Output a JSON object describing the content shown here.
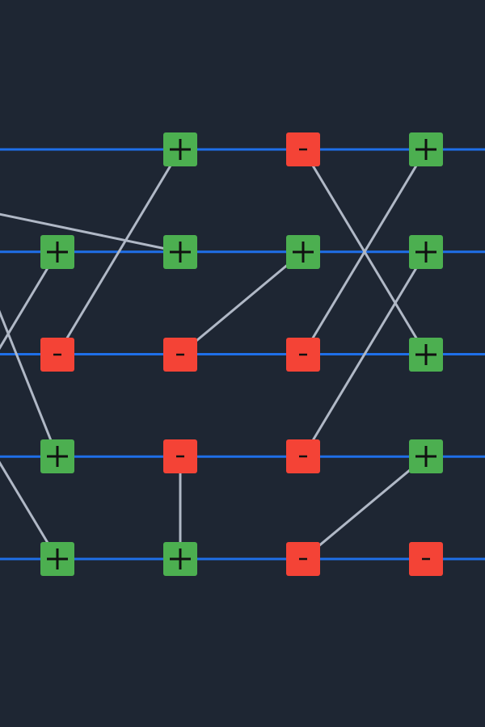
{
  "theme": {
    "background": "#1e2633",
    "wire_color": "#1f6fe8",
    "connector_color": "#b0b8c6",
    "plus_color": "#4caf50",
    "minus_color": "#f44336",
    "sign_color": "#111111"
  },
  "board": {
    "rows": 5,
    "columns": 4,
    "nodes": [
      {
        "row": 0,
        "col": 1,
        "sign": "plus",
        "icon": "plus-icon"
      },
      {
        "row": 0,
        "col": 2,
        "sign": "minus",
        "icon": "minus-icon"
      },
      {
        "row": 0,
        "col": 3,
        "sign": "plus",
        "icon": "plus-icon"
      },
      {
        "row": 1,
        "col": 0,
        "sign": "plus",
        "icon": "plus-icon"
      },
      {
        "row": 1,
        "col": 1,
        "sign": "plus",
        "icon": "plus-icon"
      },
      {
        "row": 1,
        "col": 2,
        "sign": "plus",
        "icon": "plus-icon"
      },
      {
        "row": 1,
        "col": 3,
        "sign": "plus",
        "icon": "plus-icon"
      },
      {
        "row": 2,
        "col": 0,
        "sign": "minus",
        "icon": "minus-icon"
      },
      {
        "row": 2,
        "col": 1,
        "sign": "minus",
        "icon": "minus-icon"
      },
      {
        "row": 2,
        "col": 2,
        "sign": "minus",
        "icon": "minus-icon"
      },
      {
        "row": 2,
        "col": 3,
        "sign": "plus",
        "icon": "plus-icon"
      },
      {
        "row": 3,
        "col": 0,
        "sign": "plus",
        "icon": "plus-icon"
      },
      {
        "row": 3,
        "col": 1,
        "sign": "minus",
        "icon": "minus-icon"
      },
      {
        "row": 3,
        "col": 2,
        "sign": "minus",
        "icon": "minus-icon"
      },
      {
        "row": 3,
        "col": 3,
        "sign": "plus",
        "icon": "plus-icon"
      },
      {
        "row": 4,
        "col": 0,
        "sign": "plus",
        "icon": "plus-icon"
      },
      {
        "row": 4,
        "col": 1,
        "sign": "plus",
        "icon": "plus-icon"
      },
      {
        "row": 4,
        "col": 2,
        "sign": "minus",
        "icon": "minus-icon"
      },
      {
        "row": 4,
        "col": 3,
        "sign": "minus",
        "icon": "minus-icon"
      }
    ],
    "connections": [
      {
        "from": {
          "row": 0,
          "col": 1
        },
        "to": {
          "row": 2,
          "col": 0
        }
      },
      {
        "from": {
          "row": 0,
          "col": 2
        },
        "to": {
          "row": 2,
          "col": 3
        }
      },
      {
        "from": {
          "row": 0,
          "col": 3
        },
        "to": {
          "row": 2,
          "col": 2
        }
      },
      {
        "from": {
          "row": 1,
          "col": 3
        },
        "to": {
          "row": 3,
          "col": 2
        }
      },
      {
        "from": {
          "row": 1,
          "col": 2
        },
        "to": {
          "row": 2,
          "col": 1
        }
      },
      {
        "from": {
          "row": 3,
          "col": 1
        },
        "to": {
          "row": 4,
          "col": 1
        }
      },
      {
        "from": {
          "row": 3,
          "col": 3
        },
        "to": {
          "row": 4,
          "col": 2
        }
      },
      {
        "from": {
          "row": 1,
          "col": 1
        },
        "to": {
          "row": 0.5,
          "col": -1
        }
      },
      {
        "from": {
          "row": 1,
          "col": 0
        },
        "to": {
          "row": 2,
          "col": -0.5
        }
      },
      {
        "from": {
          "row": 3,
          "col": 0
        },
        "to": {
          "row": 1.5,
          "col": -0.5
        }
      },
      {
        "from": {
          "row": 4,
          "col": 0
        },
        "to": {
          "row": 3,
          "col": -0.5
        }
      }
    ]
  }
}
